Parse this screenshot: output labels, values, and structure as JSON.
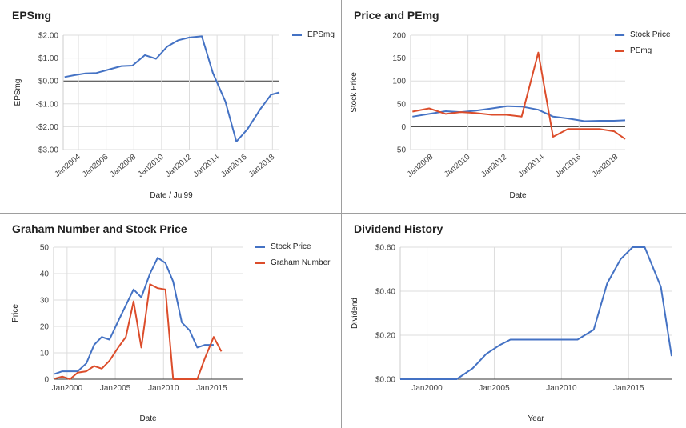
{
  "chart_data": [
    {
      "type": "line",
      "title": "EPSmg",
      "xlabel": "Date / Jul99",
      "ylabel": "EPSmg",
      "xlim": [
        2002.9,
        2018.5
      ],
      "ylim": [
        -3,
        2
      ],
      "yticks": [
        2,
        1,
        0,
        -1,
        -2,
        -3
      ],
      "ytick_labels": [
        "$2.00",
        "$1.00",
        "$0.00",
        "-$1.00",
        "-$2.00",
        "-$3.00"
      ],
      "xticks": [
        2004,
        2006,
        2008,
        2010,
        2012,
        2014,
        2016,
        2018
      ],
      "xtick_labels": [
        "Jan2004",
        "Jan2006",
        "Jan2008",
        "Jan2010",
        "Jan2012",
        "Jan2014",
        "Jan2016",
        "Jan2018"
      ],
      "grid": true,
      "zero_line": true,
      "legend": "top-right",
      "x": [
        2003.0,
        2003.7,
        2004.5,
        2005.3,
        2006.2,
        2007.1,
        2007.9,
        2008.8,
        2009.6,
        2010.4,
        2011.2,
        2012.0,
        2012.9,
        2013.7,
        2014.6,
        2015.4,
        2016.2,
        2017.1,
        2017.9,
        2018.5
      ],
      "series": [
        {
          "name": "EPSmg",
          "color": "#4472c4",
          "values": [
            0.17,
            0.25,
            0.33,
            0.35,
            0.5,
            0.65,
            0.67,
            1.13,
            0.97,
            1.5,
            1.78,
            1.9,
            1.95,
            0.35,
            -0.9,
            -2.65,
            -2.1,
            -1.25,
            -0.6,
            -0.5
          ]
        }
      ]
    },
    {
      "type": "line",
      "title": "Price and PEmg",
      "xlabel": "Date",
      "ylabel": "Stock Price",
      "xlim": [
        2006.9,
        2018.5
      ],
      "ylim": [
        -50,
        200
      ],
      "yticks": [
        200,
        150,
        100,
        50,
        0,
        -50
      ],
      "ytick_labels": [
        "200",
        "150",
        "100",
        "50",
        "0",
        "-50"
      ],
      "xticks": [
        2008,
        2010,
        2012,
        2014,
        2016,
        2018
      ],
      "xtick_labels": [
        "Jan2008",
        "Jan2010",
        "Jan2012",
        "Jan2014",
        "Jan2016",
        "Jan2018"
      ],
      "grid": true,
      "zero_line": true,
      "legend": "top-right",
      "x": [
        2007.0,
        2007.9,
        2008.8,
        2009.6,
        2010.4,
        2011.3,
        2012.1,
        2012.9,
        2013.8,
        2014.6,
        2015.4,
        2016.3,
        2017.1,
        2017.9,
        2018.5
      ],
      "series": [
        {
          "name": "Stock Price",
          "color": "#4472c4",
          "values": [
            22,
            28,
            34,
            32,
            35,
            40,
            45,
            44,
            37,
            22,
            18,
            12,
            13,
            13,
            14
          ]
        },
        {
          "name": "PEmg",
          "color": "#dc4d2b",
          "values": [
            33,
            40,
            28,
            32,
            30,
            26,
            26,
            22,
            162,
            -22,
            -5,
            -5,
            -5,
            -10,
            -27
          ]
        }
      ]
    },
    {
      "type": "line",
      "title": "Graham Number and Stock Price",
      "xlabel": "Date",
      "ylabel": "Price",
      "xlim": [
        1998.6,
        2018.2
      ],
      "ylim": [
        0,
        50
      ],
      "yticks": [
        50,
        40,
        30,
        20,
        10,
        0
      ],
      "ytick_labels": [
        "50",
        "40",
        "30",
        "20",
        "10",
        "0"
      ],
      "xticks": [
        2000,
        2005,
        2010,
        2015
      ],
      "xtick_labels": [
        "Jan2000",
        "Jan2005",
        "Jan2010",
        "Jan2015"
      ],
      "grid": true,
      "legend": "top-right",
      "x": [
        1998.7,
        1999.5,
        2000.3,
        2001.1,
        2002.0,
        2002.8,
        2003.6,
        2004.4,
        2005.3,
        2006.1,
        2006.9,
        2007.7,
        2008.6,
        2009.4,
        2010.2,
        2011.0,
        2011.9,
        2012.7,
        2013.5,
        2014.3,
        2015.2,
        2016.0,
        2016.8,
        2017.6,
        2018.2
      ],
      "series": [
        {
          "name": "Stock Price",
          "color": "#4472c4",
          "values": [
            2,
            3,
            3,
            3,
            6,
            13,
            16,
            15,
            22,
            28,
            34,
            31,
            40,
            46,
            44,
            37,
            21.5,
            18.5,
            12,
            13,
            13,
            null,
            null,
            null,
            null
          ]
        },
        {
          "name": "Graham Number",
          "color": "#dc4d2b",
          "values": [
            0.2,
            1,
            0,
            2.5,
            3,
            5,
            4,
            7,
            12,
            16,
            29.5,
            12,
            36,
            34.5,
            34,
            0,
            0,
            0,
            0,
            8,
            16,
            10.5,
            null,
            null,
            null
          ]
        }
      ]
    },
    {
      "type": "line",
      "title": "Dividend History",
      "xlabel": "Year",
      "ylabel": "Dividend",
      "xlim": [
        1998.0,
        2018.2
      ],
      "ylim": [
        0,
        0.6
      ],
      "yticks": [
        0.6,
        0.4,
        0.2,
        0
      ],
      "ytick_labels": [
        "$0.60",
        "$0.40",
        "$0.20",
        "$0.00"
      ],
      "xticks": [
        2000,
        2005,
        2010,
        2015
      ],
      "xtick_labels": [
        "Jan2000",
        "Jan2005",
        "Jan2010",
        "Jan2015"
      ],
      "grid": true,
      "x": [
        1998.0,
        2002.2,
        2003.4,
        2004.4,
        2005.4,
        2006.2,
        2008.0,
        2010.0,
        2011.2,
        2012.4,
        2013.4,
        2014.4,
        2015.3,
        2016.2,
        2017.4,
        2018.2
      ],
      "series": [
        {
          "name": "",
          "color": "#4472c4",
          "values": [
            0,
            0,
            0.05,
            0.115,
            0.155,
            0.18,
            0.18,
            0.18,
            0.18,
            0.225,
            0.435,
            0.545,
            0.6,
            0.6,
            0.42,
            0.105
          ]
        }
      ]
    }
  ]
}
